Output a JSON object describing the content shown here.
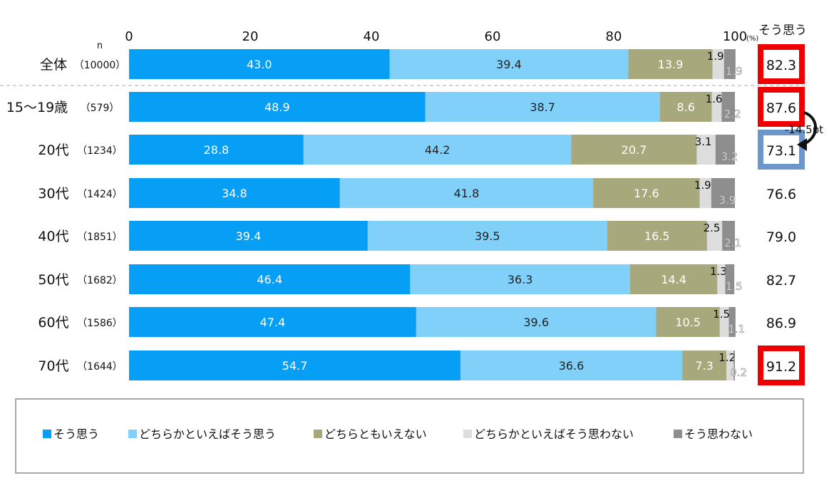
{
  "chart_data": {
    "type": "bar",
    "orientation": "horizontal-stacked-100",
    "xlim": [
      0,
      100
    ],
    "xticks": [
      "0",
      "20",
      "40",
      "60",
      "80",
      "100"
    ],
    "xunit": "(%)",
    "n_header": "n",
    "summary_header": "そう思う",
    "categories": [
      {
        "label": "全体",
        "n": "（10000）"
      },
      {
        "label": "15～19歳",
        "n": "（579）"
      },
      {
        "label": "20代",
        "n": "（1234）"
      },
      {
        "label": "30代",
        "n": "（1424）"
      },
      {
        "label": "40代",
        "n": "（1851）"
      },
      {
        "label": "50代",
        "n": "（1682）"
      },
      {
        "label": "60代",
        "n": "（1586）"
      },
      {
        "label": "70代",
        "n": "（1644）"
      }
    ],
    "series": [
      {
        "name": "そう思う",
        "color": "#079ff5",
        "values": [
          43.0,
          48.9,
          28.8,
          34.8,
          39.4,
          46.4,
          47.4,
          54.7
        ]
      },
      {
        "name": "どちらかといえばそう思う",
        "color": "#80d0fa",
        "values": [
          39.4,
          38.7,
          44.2,
          41.8,
          39.5,
          36.3,
          39.6,
          36.6
        ]
      },
      {
        "name": "どちらともいえない",
        "color": "#a7a87b",
        "values": [
          13.9,
          8.6,
          20.7,
          17.6,
          16.5,
          14.4,
          10.5,
          7.3
        ]
      },
      {
        "name": "どちらかといえばそう思わない",
        "color": "#dddddd",
        "values": [
          1.9,
          1.6,
          3.1,
          1.9,
          2.5,
          1.3,
          1.5,
          1.2
        ]
      },
      {
        "name": "そう思わない",
        "color": "#8e8e8e",
        "values": [
          1.9,
          2.2,
          3.2,
          3.9,
          2.1,
          1.5,
          1.1,
          0.2
        ]
      }
    ],
    "summary": [
      "82.3",
      "87.6",
      "73.1",
      "76.6",
      "79.0",
      "82.7",
      "86.9",
      "91.2"
    ],
    "summary_highlight": [
      "red",
      "red",
      "blue",
      "none",
      "none",
      "none",
      "none",
      "red"
    ],
    "annotation": "-14.5pt",
    "legend_position": "bottom"
  }
}
